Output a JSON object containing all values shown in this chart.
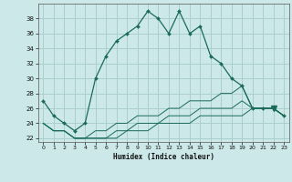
{
  "xlabel": "Humidex (Indice chaleur)",
  "bg_color": "#cce8e8",
  "grid_color": "#aacece",
  "line_color": "#1a6b5a",
  "x": [
    0,
    1,
    2,
    3,
    4,
    5,
    6,
    7,
    8,
    9,
    10,
    11,
    12,
    13,
    14,
    15,
    16,
    17,
    18,
    19,
    20,
    21,
    22,
    23
  ],
  "main_y": [
    27,
    25,
    24,
    23,
    24,
    30,
    33,
    35,
    36,
    37,
    39,
    38,
    36,
    39,
    36,
    37,
    33,
    32,
    30,
    29,
    26,
    26,
    26,
    25
  ],
  "line2_y": [
    24,
    23,
    23,
    22,
    22,
    23,
    23,
    24,
    24,
    25,
    25,
    25,
    26,
    26,
    27,
    27,
    27,
    28,
    28,
    29,
    26,
    26,
    26,
    25
  ],
  "line3_y": [
    24,
    23,
    23,
    22,
    22,
    22,
    22,
    23,
    23,
    24,
    24,
    24,
    25,
    25,
    25,
    26,
    26,
    26,
    26,
    27,
    26,
    26,
    26,
    25
  ],
  "line4_y": [
    24,
    23,
    23,
    22,
    22,
    22,
    22,
    22,
    23,
    23,
    23,
    24,
    24,
    24,
    24,
    25,
    25,
    25,
    25,
    25,
    26,
    26,
    26,
    25
  ],
  "ylim": [
    21.5,
    40
  ],
  "xlim": [
    -0.5,
    23.5
  ],
  "yticks": [
    22,
    24,
    26,
    28,
    30,
    32,
    34,
    36,
    38
  ],
  "xticks": [
    0,
    1,
    2,
    3,
    4,
    5,
    6,
    7,
    8,
    9,
    10,
    11,
    12,
    13,
    14,
    15,
    16,
    17,
    18,
    19,
    20,
    21,
    22,
    23
  ]
}
